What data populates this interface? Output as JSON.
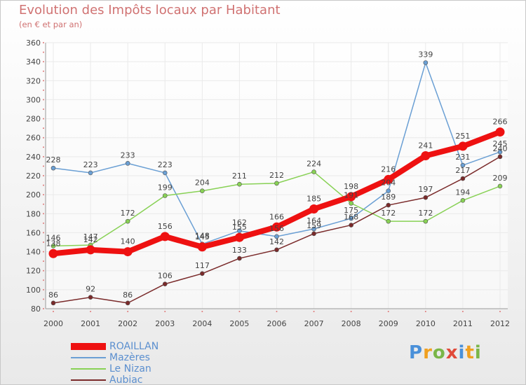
{
  "title": "Evolution des Impôts locaux par Habitant",
  "subtitle": "(en € et par an)",
  "brand": "Proxiti",
  "colors": {
    "axis": "#9a9a9a",
    "grid": "#eaeaea",
    "tick_dots": "#e07777",
    "label": "#444444",
    "legend_text": "#5b8fcf"
  },
  "chart_data": {
    "type": "line",
    "title": "Evolution des Impôts locaux par Habitant",
    "subtitle": "(en € et par an)",
    "xlabel": "",
    "ylabel": "",
    "ylim": [
      80,
      360
    ],
    "ytick_step": 20,
    "grid": true,
    "legend_position": "bottom-left",
    "x": [
      "2000",
      "2001",
      "2002",
      "2003",
      "2004",
      "2005",
      "2006",
      "2007",
      "2008",
      "2009",
      "2010",
      "2011",
      "2012"
    ],
    "series": [
      {
        "name": "ROAILLAN",
        "color": "#ee1111",
        "values": [
          138,
          142,
          140,
          156,
          145,
          155,
          166,
          185,
          198,
          216,
          241,
          251,
          266
        ],
        "labels": [
          "138",
          "142",
          "140",
          "156",
          "145",
          "155",
          "166",
          "185",
          "198",
          "216",
          "241",
          "251",
          "266"
        ]
      },
      {
        "name": "Mazères",
        "color": "#6a9fd4",
        "values": [
          228,
          223,
          233,
          223,
          148,
          162,
          156,
          164,
          175,
          204,
          339,
          231,
          245
        ],
        "labels": [
          "228",
          "223",
          "233",
          "223",
          "148",
          "162",
          "156",
          "164",
          "175",
          "204",
          "339",
          "231",
          "245"
        ]
      },
      {
        "name": "Le Nizan",
        "color": "#88d155",
        "values": [
          146,
          147,
          172,
          199,
          204,
          211,
          212,
          224,
          191,
          172,
          172,
          194,
          209
        ],
        "labels": [
          "146",
          "147",
          "172",
          "199",
          "204",
          "211",
          "212",
          "224",
          "191",
          "172",
          "172",
          "194",
          "209"
        ]
      },
      {
        "name": "Aubiac",
        "color": "#7a2a2a",
        "values": [
          86,
          92,
          86,
          106,
          117,
          133,
          142,
          159,
          168,
          189,
          197,
          217,
          240
        ],
        "labels": [
          "86",
          "92",
          "86",
          "106",
          "117",
          "133",
          "142",
          "159",
          "168",
          "189",
          "197",
          "217",
          "240"
        ]
      }
    ]
  }
}
